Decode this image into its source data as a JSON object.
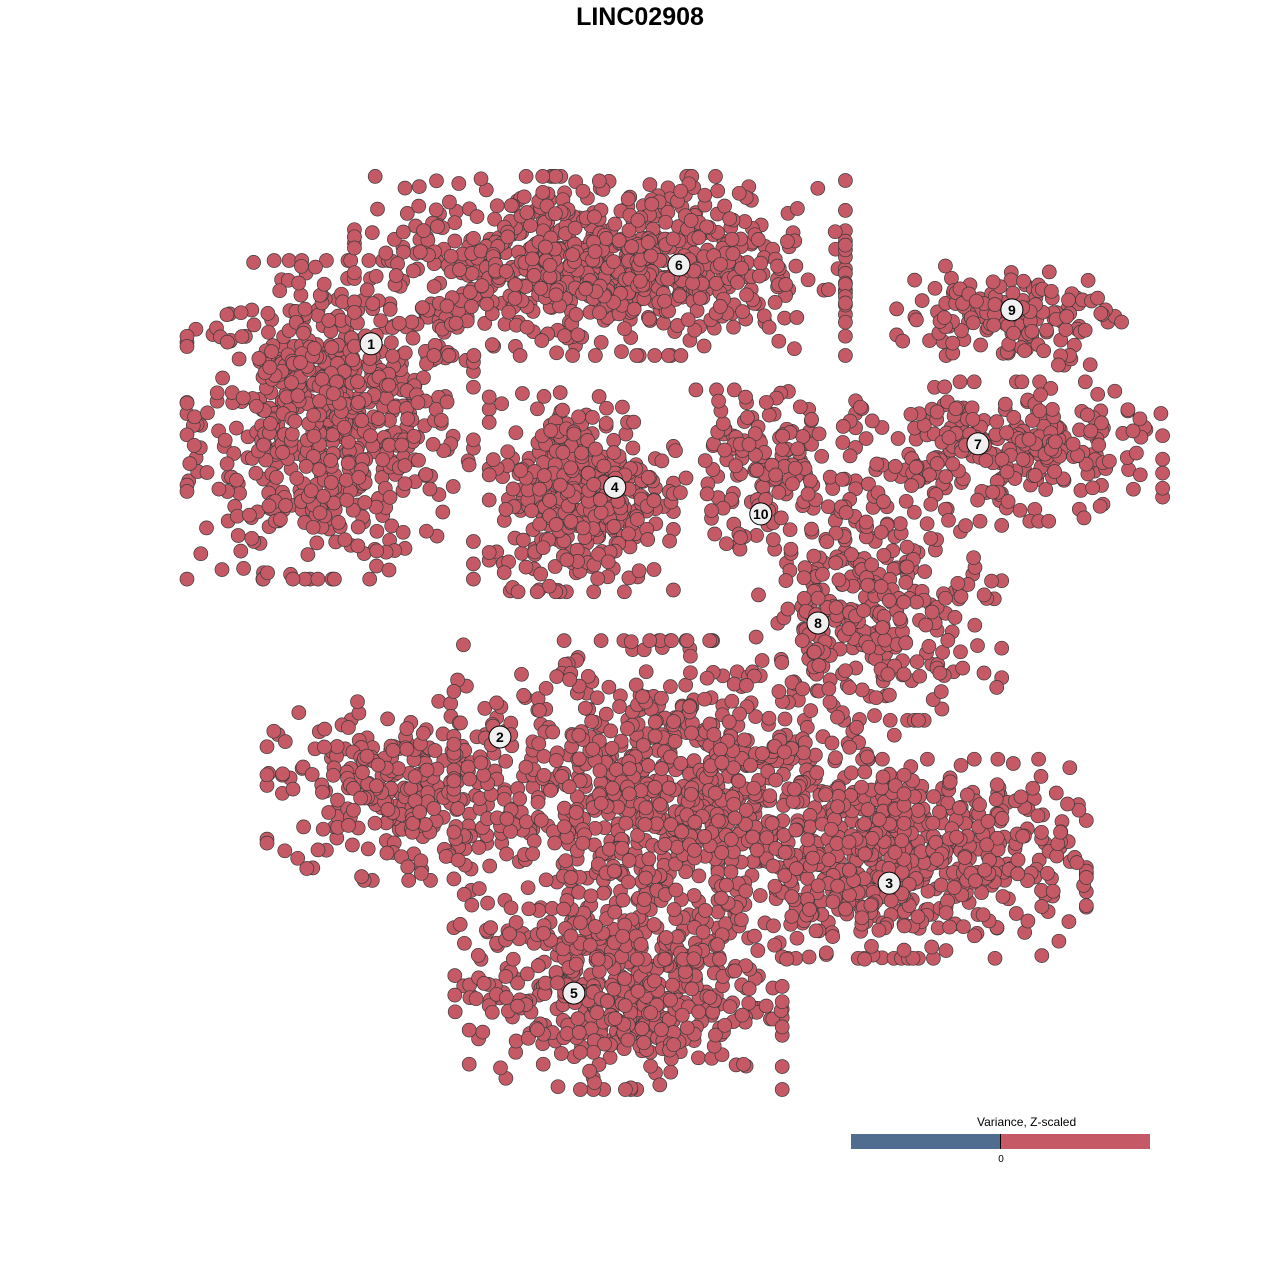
{
  "chart_data": {
    "type": "scatter",
    "title": "LINC02908",
    "xlabel": "",
    "ylabel": "",
    "xlim": [
      -10,
      10
    ],
    "ylim": [
      -10,
      10
    ],
    "grid": false,
    "axes_visible": false,
    "point_color": "#c55a66",
    "point_outline": "#3a3a3a",
    "clusters": [
      {
        "label": "1",
        "label_pos": [
          -6.32,
          6.48
        ],
        "center": [
          -7.2,
          4.8
        ],
        "spread": [
          1.4,
          1.6
        ],
        "n": 700
      },
      {
        "label": "2",
        "label_pos": [
          -3.55,
          -2.21
        ],
        "center": [
          -5.7,
          -3.4
        ],
        "spread": [
          1.3,
          0.9
        ],
        "n": 300
      },
      {
        "label": "3",
        "label_pos": [
          4.82,
          -5.44
        ],
        "center": [
          5.1,
          -4.9
        ],
        "spread": [
          1.8,
          1.0
        ],
        "n": 600
      },
      {
        "label": "4",
        "label_pos": [
          -1.08,
          3.31
        ],
        "center": [
          -1.8,
          3.2
        ],
        "spread": [
          0.9,
          1.0
        ],
        "n": 400
      },
      {
        "label": "5",
        "label_pos": [
          -1.96,
          -7.87
        ],
        "center": [
          -1.0,
          -7.8
        ],
        "spread": [
          1.6,
          1.0
        ],
        "n": 500
      },
      {
        "label": "6",
        "label_pos": [
          0.3,
          8.22
        ],
        "center": [
          -1.4,
          8.2
        ],
        "spread": [
          2.4,
          0.9
        ],
        "n": 800
      },
      {
        "label": "7",
        "label_pos": [
          6.73,
          4.27
        ],
        "center": [
          7.4,
          4.1
        ],
        "spread": [
          1.5,
          0.7
        ],
        "n": 280
      },
      {
        "label": "8",
        "label_pos": [
          3.29,
          0.31
        ],
        "center": [
          4.6,
          0.8
        ],
        "spread": [
          1.2,
          1.2
        ],
        "n": 300
      },
      {
        "label": "9",
        "label_pos": [
          7.46,
          7.23
        ],
        "center": [
          7.4,
          7.1
        ],
        "spread": [
          1.1,
          0.5
        ],
        "n": 150
      },
      {
        "label": "10",
        "label_pos": [
          2.06,
          2.72
        ],
        "center": [
          2.0,
          3.7
        ],
        "spread": [
          0.9,
          0.8
        ],
        "n": 150
      },
      {
        "label": "",
        "center": [
          0.3,
          -3.6
        ],
        "spread": [
          2.2,
          1.6
        ],
        "n": 900
      }
    ],
    "legend": {
      "title": "Variance, Z-scaled",
      "tick_label": "0",
      "low_color": "#506d8f",
      "high_color": "#c55a66",
      "placement": "bottom-right"
    }
  }
}
